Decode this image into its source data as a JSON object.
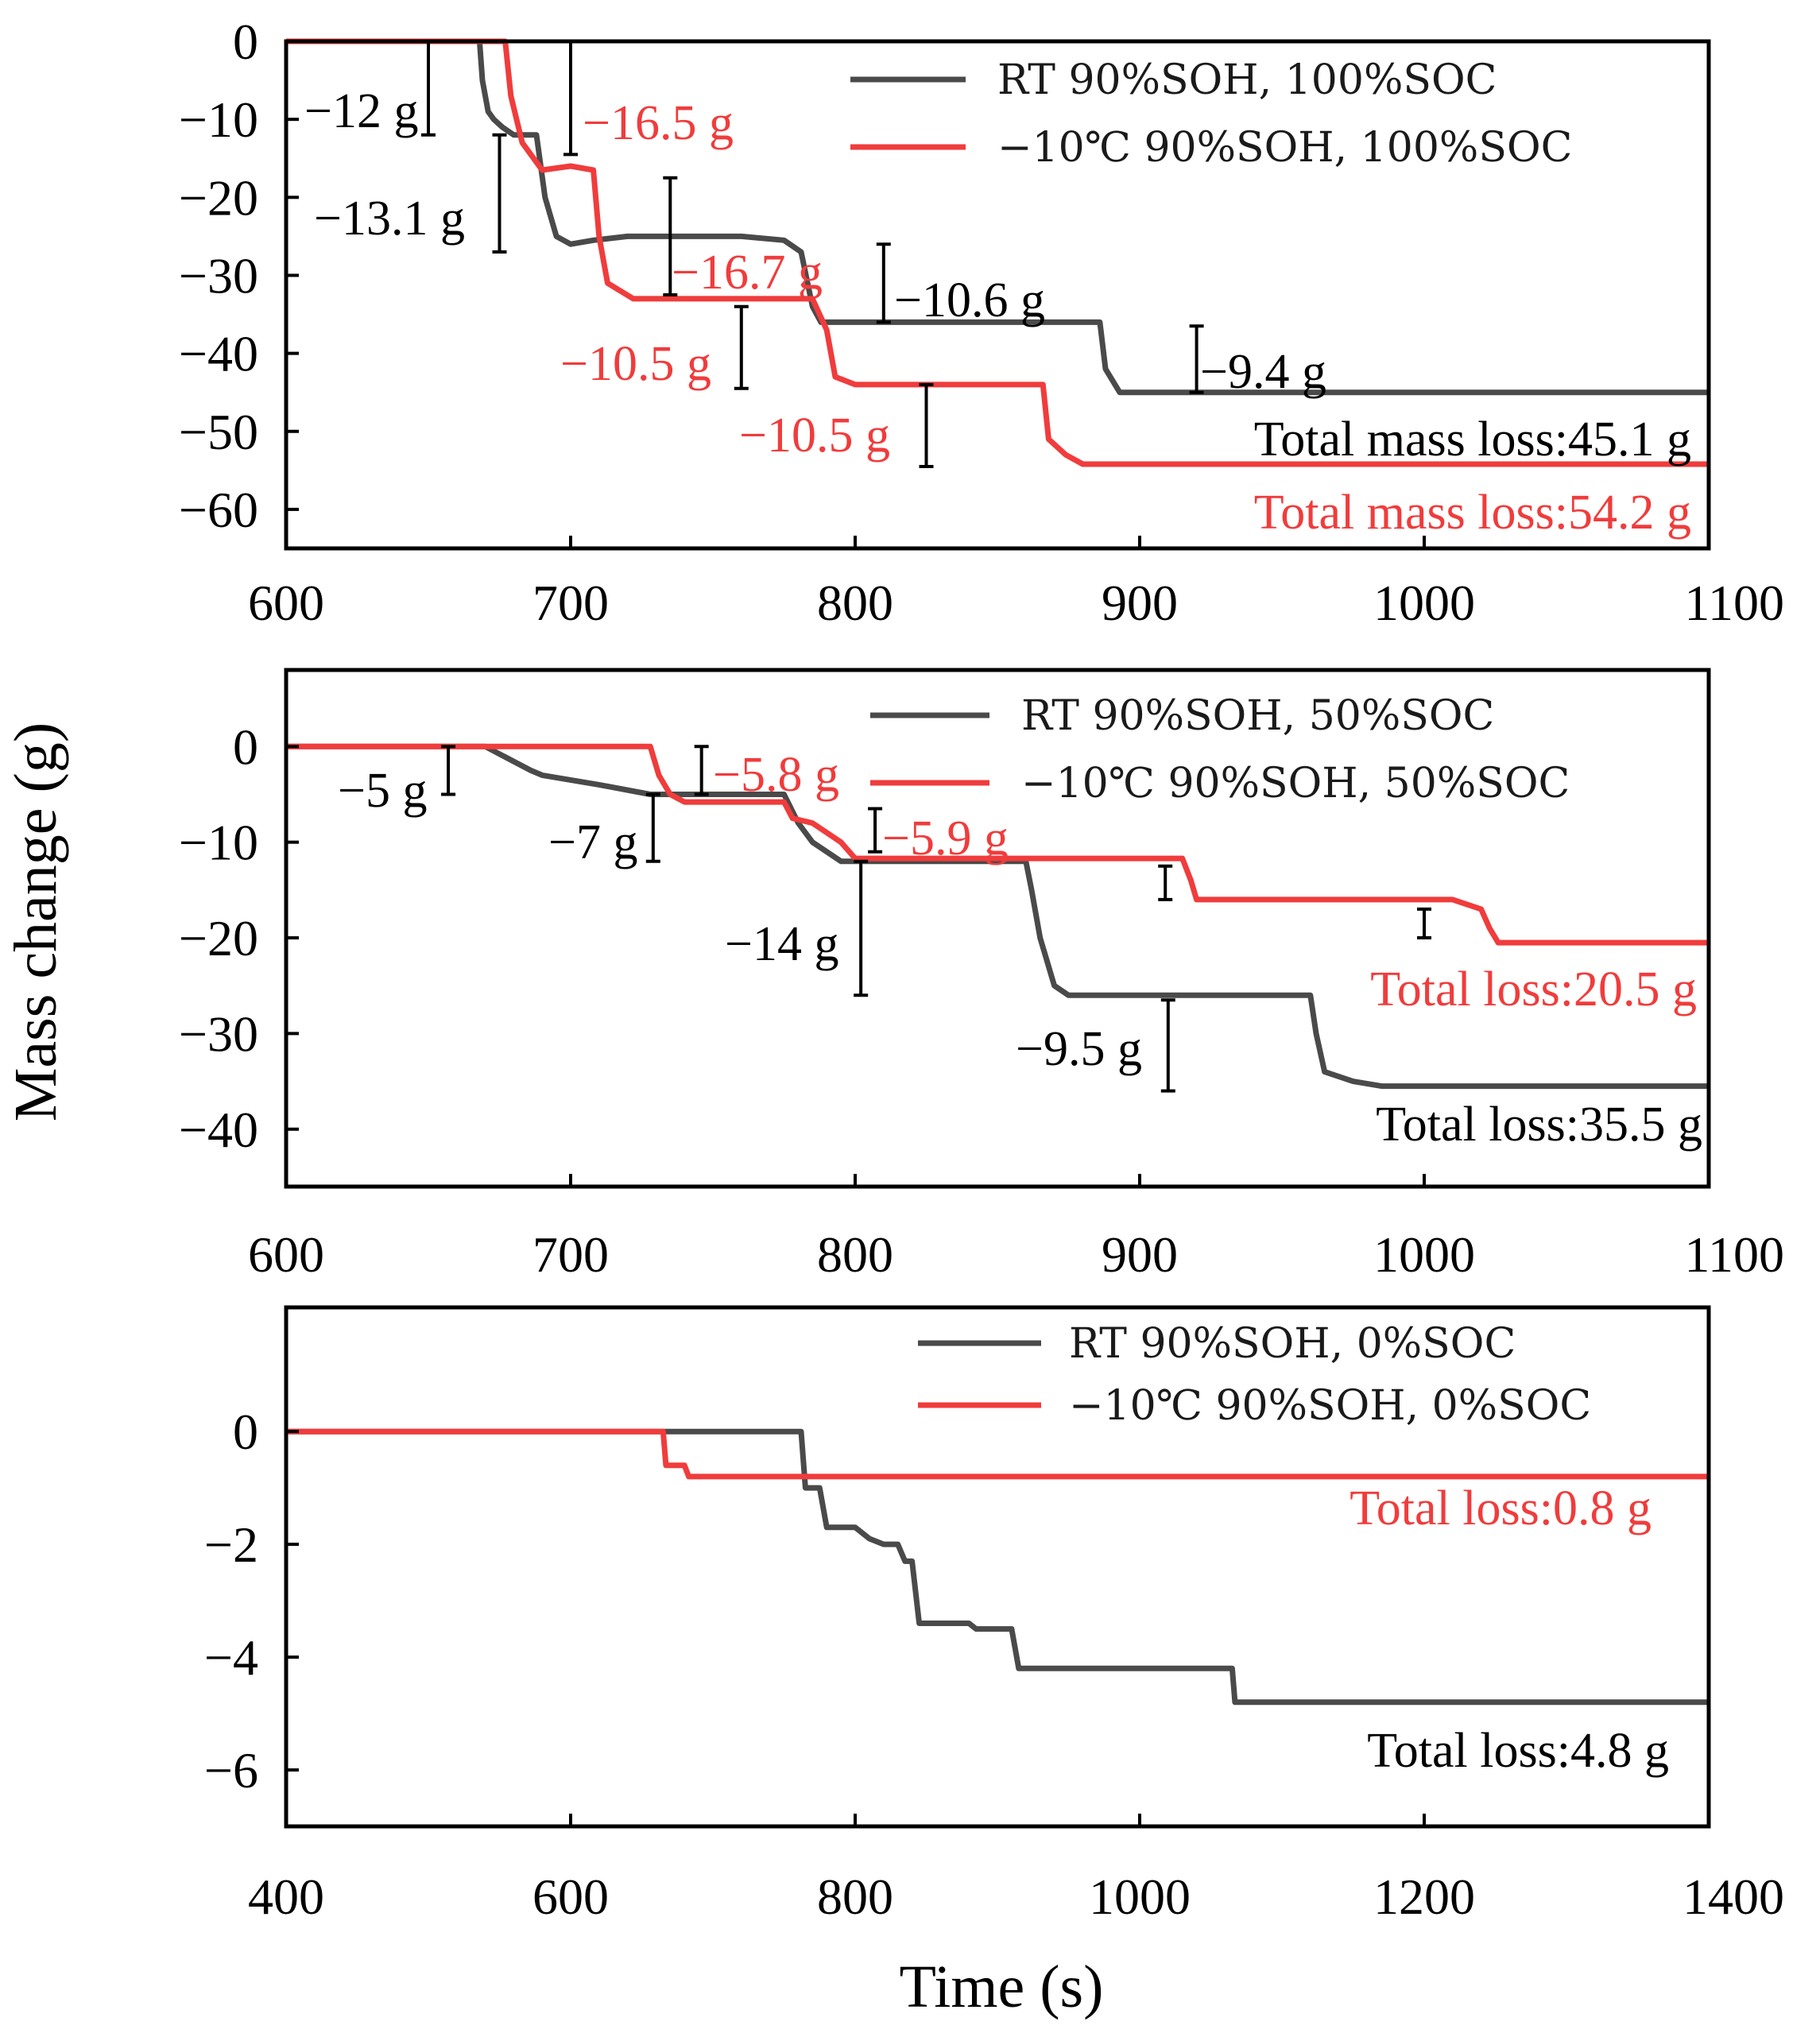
{
  "colors": {
    "rt": "#4a4a4a",
    "cold": "#f03c3c",
    "ink": "#000000"
  },
  "xlabel": "Time (s)",
  "ylabel": "Mass change (g)",
  "chart_data": [
    {
      "type": "line",
      "xlim": [
        600,
        1100
      ],
      "ylim": [
        -65,
        0
      ],
      "xticks": [
        "600",
        "700",
        "800",
        "900",
        "1000",
        "1100"
      ],
      "yticks": [
        "0",
        "−10",
        "−20",
        "−30",
        "−40",
        "−50",
        "−60"
      ],
      "series": [
        {
          "name": "RT 90%SOH, 100%SOC",
          "color_key": "rt",
          "x": [
            600,
            668,
            669,
            671,
            673,
            676,
            680,
            688,
            691,
            695,
            700,
            708,
            720,
            760,
            775,
            781,
            785,
            788,
            800,
            886,
            888,
            893,
            900,
            1100
          ],
          "y": [
            0,
            0,
            -5,
            -9,
            -10,
            -11,
            -12,
            -12,
            -20,
            -25,
            -26,
            -25.5,
            -25,
            -25,
            -25.5,
            -27,
            -34,
            -36,
            -36,
            -36,
            -42,
            -45,
            -45,
            -45
          ]
        },
        {
          "name": "−10℃ 90%SOH, 100%SOC",
          "color_key": "cold",
          "x": [
            600,
            677,
            679,
            683,
            690,
            700,
            708,
            710,
            713,
            722,
            735,
            750,
            785,
            790,
            793,
            800,
            860,
            866,
            868,
            874,
            880,
            1100
          ],
          "y": [
            0,
            0,
            -7,
            -13,
            -16.5,
            -16,
            -16.5,
            -25,
            -31,
            -33,
            -33,
            -33,
            -33,
            -37,
            -43,
            -44,
            -44,
            -44,
            -51,
            -53,
            -54.2,
            -54.2
          ]
        }
      ],
      "annotations": [
        {
          "text": "−12 g",
          "color_key": "ink"
        },
        {
          "text": "−16.5 g",
          "color_key": "cold"
        },
        {
          "text": "−13.1 g",
          "color_key": "ink"
        },
        {
          "text": "−16.7 g",
          "color_key": "cold"
        },
        {
          "text": "−10.6 g",
          "color_key": "ink"
        },
        {
          "text": "−10.5 g",
          "color_key": "cold"
        },
        {
          "text": "−9.4 g",
          "color_key": "ink"
        },
        {
          "text": "−10.5 g",
          "color_key": "cold"
        },
        {
          "text": "Total mass loss:45.1 g",
          "color_key": "ink"
        },
        {
          "text": "Total mass loss:54.2 g",
          "color_key": "cold"
        }
      ],
      "errorbars": [
        {
          "x": 650,
          "y0": 0,
          "y1": -12
        },
        {
          "x": 700,
          "y0": 0,
          "y1": -14.5
        },
        {
          "x": 675,
          "y0": -12,
          "y1": -27
        },
        {
          "x": 735,
          "y0": -17.5,
          "y1": -32.5
        },
        {
          "x": 810,
          "y0": -26,
          "y1": -36
        },
        {
          "x": 760,
          "y0": -34,
          "y1": -44.5
        },
        {
          "x": 920,
          "y0": -36.5,
          "y1": -45
        },
        {
          "x": 825,
          "y0": -44,
          "y1": -54.5
        }
      ]
    },
    {
      "type": "line",
      "xlim": [
        600,
        1100
      ],
      "ylim": [
        -46,
        8
      ],
      "xticks": [
        "600",
        "700",
        "800",
        "900",
        "1000",
        "1100"
      ],
      "yticks": [
        "0",
        "−10",
        "−20",
        "−30",
        "−40"
      ],
      "series": [
        {
          "name": "RT 90%SOH, 50%SOC",
          "color_key": "rt",
          "x": [
            600,
            670,
            686,
            690,
            710,
            728,
            740,
            775,
            780,
            785,
            790,
            795,
            800,
            860,
            862,
            865,
            867,
            870,
            875,
            880,
            960,
            962,
            965,
            975,
            985,
            1100
          ],
          "y": [
            0,
            0,
            -2.5,
            -3,
            -4,
            -5,
            -5,
            -5,
            -8,
            -10,
            -11,
            -12,
            -12,
            -12,
            -15,
            -20,
            -22,
            -25,
            -26,
            -26,
            -26,
            -30,
            -34,
            -35,
            -35.5,
            -35.5
          ]
        },
        {
          "name": "−10℃ 90%SOH, 50%SOC",
          "color_key": "cold",
          "x": [
            600,
            728,
            731,
            735,
            740,
            775,
            778,
            785,
            790,
            795,
            800,
            915,
            918,
            920,
            925,
            1010,
            1020,
            1023,
            1026,
            1030,
            1100
          ],
          "y": [
            0,
            0,
            -3,
            -5,
            -5.8,
            -5.8,
            -7.5,
            -8,
            -9,
            -10,
            -11.7,
            -11.7,
            -14,
            -16,
            -16,
            -16,
            -17,
            -19,
            -20.5,
            -20.5,
            -20.5
          ]
        }
      ],
      "annotations": [
        {
          "text": "−5 g",
          "color_key": "ink"
        },
        {
          "text": "−5.8 g",
          "color_key": "cold"
        },
        {
          "text": "−7 g",
          "color_key": "ink"
        },
        {
          "text": "−5.9 g",
          "color_key": "cold"
        },
        {
          "text": "−14 g",
          "color_key": "ink"
        },
        {
          "text": "−9.5 g",
          "color_key": "ink"
        },
        {
          "text": "Total  loss:20.5 g",
          "color_key": "cold"
        },
        {
          "text": "Total loss:35.5 g",
          "color_key": "ink"
        }
      ],
      "errorbars": [
        {
          "x": 657,
          "y0": 0,
          "y1": -5
        },
        {
          "x": 746,
          "y0": 0,
          "y1": -5
        },
        {
          "x": 729,
          "y0": -5,
          "y1": -12
        },
        {
          "x": 807,
          "y0": -6.5,
          "y1": -11
        },
        {
          "x": 802,
          "y0": -12,
          "y1": -26
        },
        {
          "x": 909,
          "y0": -12.5,
          "y1": -16
        },
        {
          "x": 1000,
          "y0": -17,
          "y1": -20
        },
        {
          "x": 910,
          "y0": -26.5,
          "y1": -36
        }
      ]
    },
    {
      "type": "line",
      "xlim": [
        400,
        1400
      ],
      "ylim": [
        -7,
        2.2
      ],
      "xticks": [
        "400",
        "600",
        "800",
        "1000",
        "1200",
        "1400"
      ],
      "yticks": [
        "0",
        "−2",
        "−4",
        "−6"
      ],
      "series": [
        {
          "name": "RT 90%SOH, 0%SOC",
          "color_key": "rt",
          "x": [
            400,
            762,
            765,
            775,
            780,
            800,
            810,
            820,
            830,
            835,
            840,
            845,
            880,
            885,
            910,
            915,
            960,
            1065,
            1067,
            1400
          ],
          "y": [
            0,
            0,
            -1,
            -1,
            -1.7,
            -1.7,
            -1.9,
            -2,
            -2,
            -2.3,
            -2.3,
            -3.4,
            -3.4,
            -3.5,
            -3.5,
            -4.2,
            -4.2,
            -4.2,
            -4.8,
            -4.8
          ]
        },
        {
          "name": "−10℃ 90%SOH, 0%SOC",
          "color_key": "cold",
          "x": [
            400,
            665,
            667,
            680,
            683,
            1400
          ],
          "y": [
            0,
            0,
            -0.6,
            -0.6,
            -0.8,
            -0.8
          ]
        }
      ],
      "annotations": [
        {
          "text": "Total  loss:0.8 g",
          "color_key": "cold"
        },
        {
          "text": "Total  loss:4.8 g",
          "color_key": "ink"
        }
      ],
      "errorbars": []
    }
  ]
}
